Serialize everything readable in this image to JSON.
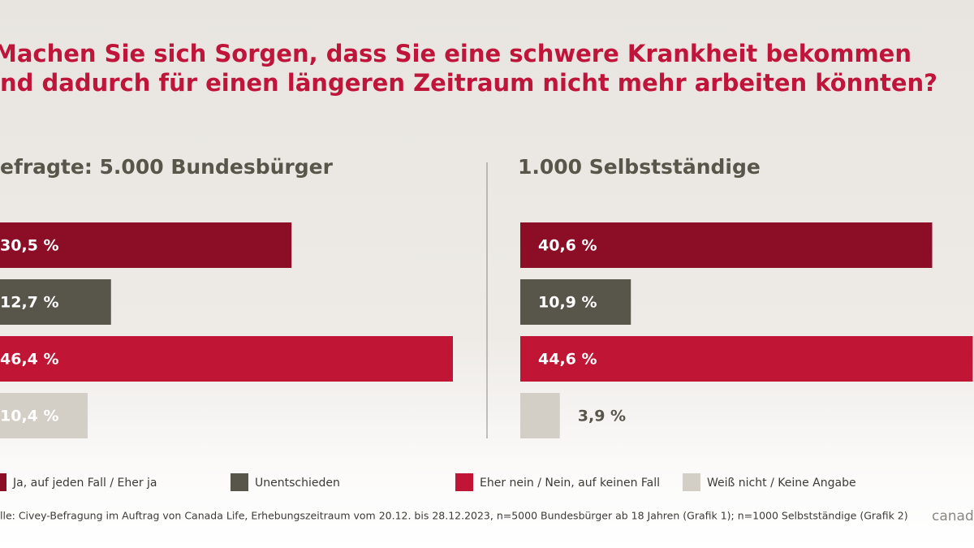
{
  "title_lines": [
    "Machen Sie sich Sorgen, dass Sie eine schwere Krankheit bekommen",
    "nd dadurch für einen längeren Zeitraum nicht mehr arbeiten könnten?"
  ],
  "legend": [
    {
      "name": "Ja, auf jeden Fall / Eher ja",
      "color": "#8b0d26"
    },
    {
      "name": "Unentschieden",
      "color": "#58554a"
    },
    {
      "name": "Eher nein / Nein, auf keinen Fall",
      "color": "#c01534"
    },
    {
      "name": "Weiß nicht / Keine Angabe",
      "color": "#d3cec6"
    }
  ],
  "source": "lle: Civey-Befragung im Auftrag von Canada Life, Erhebungszeitraum vom 20.12. bis 28.12.2023, n=5000 Bundesbürger ab 18 Jahren (Grafik 1); n=1000 Selbstständige (Grafik 2)",
  "logo": "canad",
  "chart_data": [
    {
      "type": "bar",
      "subtitle": "efragte: 5.000 Bundesbürger",
      "values": [
        30.5,
        12.7,
        46.4,
        10.4
      ],
      "value_labels": [
        "30,5 %",
        "12,7 %",
        "46,4 %",
        "10,4 %"
      ]
    },
    {
      "type": "bar",
      "subtitle": "1.000 Selbstständige",
      "values": [
        40.6,
        10.9,
        44.6,
        3.9
      ],
      "value_labels": [
        "40,6 %",
        "10,9 %",
        "44,6 %",
        "3,9 %"
      ]
    }
  ]
}
